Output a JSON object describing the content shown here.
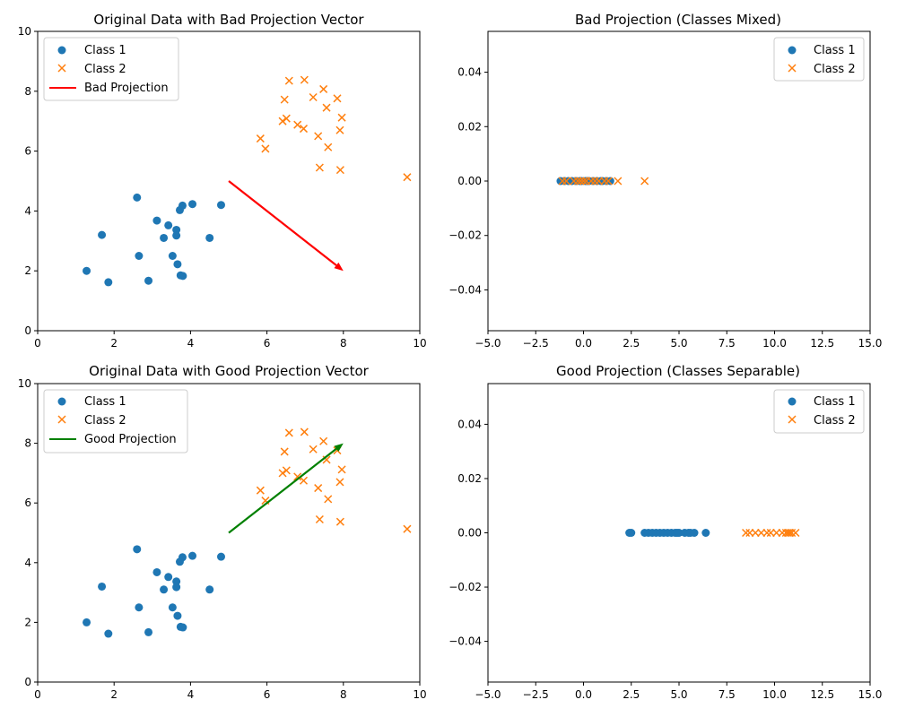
{
  "chart_data": [
    {
      "type": "scatter",
      "title": "Original Data with Bad Projection Vector",
      "xlim": [
        0,
        10
      ],
      "ylim": [
        0,
        10
      ],
      "xticks": [
        "0",
        "2",
        "4",
        "6",
        "8",
        "10"
      ],
      "yticks": [
        "0",
        "2",
        "4",
        "6",
        "8",
        "10"
      ],
      "legend_position": "top-left",
      "series": [
        {
          "name": "Class 1",
          "marker": "circle",
          "color": "#1f77b4",
          "points": [
            [
              2.6,
              4.45
            ],
            [
              1.68,
              3.2
            ],
            [
              1.28,
              2.0
            ],
            [
              1.85,
              1.62
            ],
            [
              2.65,
              2.5
            ],
            [
              2.9,
              1.67
            ],
            [
              3.12,
              3.68
            ],
            [
              3.3,
              3.1
            ],
            [
              3.42,
              3.52
            ],
            [
              3.53,
              2.5
            ],
            [
              3.63,
              3.37
            ],
            [
              3.63,
              3.18
            ],
            [
              3.66,
              2.22
            ],
            [
              3.72,
              4.03
            ],
            [
              3.74,
              1.85
            ],
            [
              3.79,
              4.18
            ],
            [
              3.8,
              1.83
            ],
            [
              4.05,
              4.23
            ],
            [
              4.5,
              3.1
            ],
            [
              4.8,
              4.2
            ]
          ]
        },
        {
          "name": "Class 2",
          "marker": "x",
          "color": "#ff7f0e",
          "points": [
            [
              5.83,
              6.42
            ],
            [
              5.96,
              6.08
            ],
            [
              6.41,
              7.0
            ],
            [
              6.46,
              7.72
            ],
            [
              6.51,
              7.09
            ],
            [
              6.58,
              8.35
            ],
            [
              6.8,
              6.88
            ],
            [
              6.96,
              6.75
            ],
            [
              6.98,
              8.38
            ],
            [
              7.21,
              7.8
            ],
            [
              7.34,
              6.5
            ],
            [
              7.38,
              5.45
            ],
            [
              7.48,
              8.07
            ],
            [
              7.56,
              7.45
            ],
            [
              7.6,
              6.13
            ],
            [
              7.84,
              7.76
            ],
            [
              7.91,
              6.7
            ],
            [
              7.92,
              5.37
            ],
            [
              7.96,
              7.12
            ],
            [
              9.67,
              5.13
            ]
          ]
        }
      ],
      "vector": {
        "name": "Bad Projection",
        "color": "#ff0000",
        "from": [
          5,
          5
        ],
        "to": [
          8,
          2
        ]
      }
    },
    {
      "type": "scatter",
      "title": "Bad Projection (Classes Mixed)",
      "xlim": [
        -5,
        15
      ],
      "ylim": [
        -0.055,
        0.055
      ],
      "xticks": [
        "−5.0",
        "−2.5",
        "0.0",
        "2.5",
        "5.0",
        "7.5",
        "10.0",
        "12.5",
        "15.0"
      ],
      "yticks": [
        "−0.04",
        "−0.02",
        "0.00",
        "0.02",
        "0.04"
      ],
      "legend_position": "top-right",
      "series": [
        {
          "name": "Class 1",
          "marker": "circle",
          "color": "#1f77b4",
          "points": [
            [
              -1.2,
              0
            ],
            [
              -1.0,
              0
            ],
            [
              -0.8,
              0
            ],
            [
              -0.6,
              0
            ],
            [
              -0.4,
              0
            ],
            [
              -0.2,
              0
            ],
            [
              -0.1,
              0
            ],
            [
              0.1,
              0
            ],
            [
              0.2,
              0
            ],
            [
              0.3,
              0
            ],
            [
              0.5,
              0
            ],
            [
              0.7,
              0
            ],
            [
              0.9,
              0
            ],
            [
              1.0,
              0
            ],
            [
              1.2,
              0
            ],
            [
              1.4,
              0
            ]
          ]
        },
        {
          "name": "Class 2",
          "marker": "x",
          "color": "#ff7f0e",
          "points": [
            [
              -1.1,
              0
            ],
            [
              -0.9,
              0
            ],
            [
              -0.5,
              0
            ],
            [
              -0.3,
              0
            ],
            [
              -0.15,
              0
            ],
            [
              0.0,
              0
            ],
            [
              0.15,
              0
            ],
            [
              0.4,
              0
            ],
            [
              0.6,
              0
            ],
            [
              0.8,
              0
            ],
            [
              1.1,
              0
            ],
            [
              1.3,
              0
            ],
            [
              1.8,
              0
            ],
            [
              3.2,
              0
            ]
          ]
        }
      ]
    },
    {
      "type": "scatter",
      "title": "Original Data with Good Projection Vector",
      "xlim": [
        0,
        10
      ],
      "ylim": [
        0,
        10
      ],
      "xticks": [
        "0",
        "2",
        "4",
        "6",
        "8",
        "10"
      ],
      "yticks": [
        "0",
        "2",
        "4",
        "6",
        "8",
        "10"
      ],
      "legend_position": "top-left",
      "series": [
        {
          "name": "Class 1",
          "marker": "circle",
          "color": "#1f77b4",
          "points": [
            [
              2.6,
              4.45
            ],
            [
              1.68,
              3.2
            ],
            [
              1.28,
              2.0
            ],
            [
              1.85,
              1.62
            ],
            [
              2.65,
              2.5
            ],
            [
              2.9,
              1.67
            ],
            [
              3.12,
              3.68
            ],
            [
              3.3,
              3.1
            ],
            [
              3.42,
              3.52
            ],
            [
              3.53,
              2.5
            ],
            [
              3.63,
              3.37
            ],
            [
              3.63,
              3.18
            ],
            [
              3.66,
              2.22
            ],
            [
              3.72,
              4.03
            ],
            [
              3.74,
              1.85
            ],
            [
              3.79,
              4.18
            ],
            [
              3.8,
              1.83
            ],
            [
              4.05,
              4.23
            ],
            [
              4.5,
              3.1
            ],
            [
              4.8,
              4.2
            ]
          ]
        },
        {
          "name": "Class 2",
          "marker": "x",
          "color": "#ff7f0e",
          "points": [
            [
              5.83,
              6.42
            ],
            [
              5.96,
              6.08
            ],
            [
              6.41,
              7.0
            ],
            [
              6.46,
              7.72
            ],
            [
              6.51,
              7.09
            ],
            [
              6.58,
              8.35
            ],
            [
              6.8,
              6.88
            ],
            [
              6.96,
              6.75
            ],
            [
              6.98,
              8.38
            ],
            [
              7.21,
              7.8
            ],
            [
              7.34,
              6.5
            ],
            [
              7.38,
              5.45
            ],
            [
              7.48,
              8.07
            ],
            [
              7.56,
              7.45
            ],
            [
              7.6,
              6.13
            ],
            [
              7.84,
              7.76
            ],
            [
              7.91,
              6.7
            ],
            [
              7.92,
              5.37
            ],
            [
              7.96,
              7.12
            ],
            [
              9.67,
              5.13
            ]
          ]
        }
      ],
      "vector": {
        "name": "Good Projection",
        "color": "#008000",
        "from": [
          5,
          5
        ],
        "to": [
          8,
          8
        ]
      }
    },
    {
      "type": "scatter",
      "title": "Good Projection (Classes Separable)",
      "xlim": [
        -5,
        15
      ],
      "ylim": [
        -0.055,
        0.055
      ],
      "xticks": [
        "−5.0",
        "−2.5",
        "0.0",
        "2.5",
        "5.0",
        "7.5",
        "10.0",
        "12.5",
        "15.0"
      ],
      "yticks": [
        "−0.04",
        "−0.02",
        "0.00",
        "0.02",
        "0.04"
      ],
      "legend_position": "top-right",
      "series": [
        {
          "name": "Class 1",
          "marker": "circle",
          "color": "#1f77b4",
          "points": [
            [
              2.4,
              0
            ],
            [
              2.5,
              0
            ],
            [
              3.2,
              0
            ],
            [
              3.4,
              0
            ],
            [
              3.6,
              0
            ],
            [
              3.8,
              0
            ],
            [
              4.0,
              0
            ],
            [
              4.2,
              0
            ],
            [
              4.4,
              0
            ],
            [
              4.6,
              0
            ],
            [
              4.8,
              0
            ],
            [
              4.9,
              0
            ],
            [
              5.0,
              0
            ],
            [
              5.3,
              0
            ],
            [
              5.5,
              0
            ],
            [
              5.6,
              0
            ],
            [
              5.8,
              0
            ],
            [
              6.4,
              0
            ]
          ]
        },
        {
          "name": "Class 2",
          "marker": "x",
          "color": "#ff7f0e",
          "points": [
            [
              8.5,
              0
            ],
            [
              8.7,
              0
            ],
            [
              9.0,
              0
            ],
            [
              9.3,
              0
            ],
            [
              9.6,
              0
            ],
            [
              9.8,
              0
            ],
            [
              10.1,
              0
            ],
            [
              10.4,
              0
            ],
            [
              10.6,
              0
            ],
            [
              10.7,
              0
            ],
            [
              10.8,
              0
            ],
            [
              10.9,
              0
            ],
            [
              11.1,
              0
            ]
          ]
        }
      ]
    }
  ]
}
